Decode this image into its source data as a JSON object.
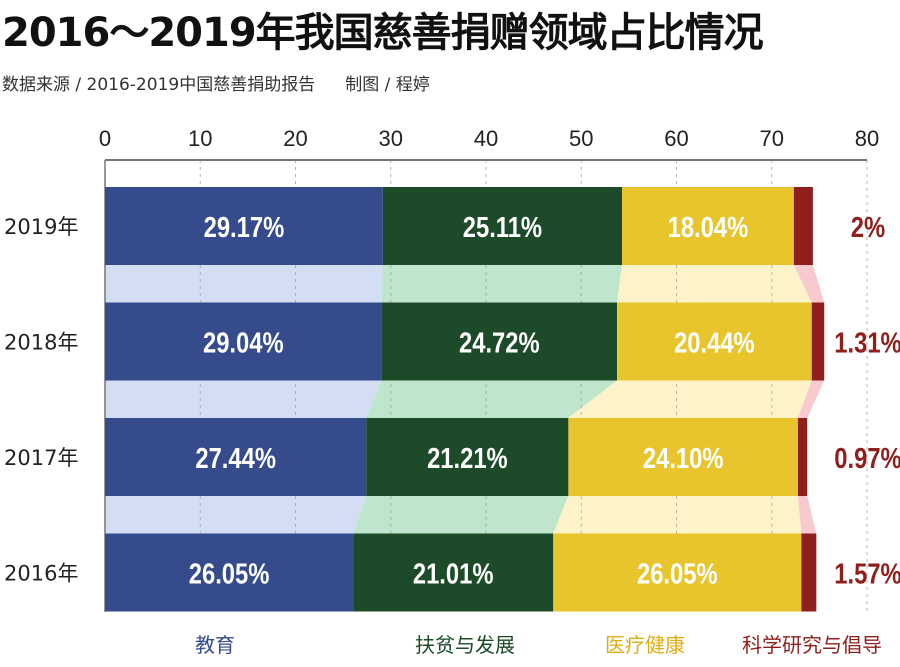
{
  "title": "2016～2019年我国慈善捐赠领域占比情况",
  "source": "数据来源 / 2016-2019中国慈善捐助报告",
  "credit": "制图 / 程婷",
  "chart_data": {
    "type": "bar",
    "orientation": "horizontal",
    "stacked": true,
    "categories": [
      "2019年",
      "2018年",
      "2017年",
      "2016年"
    ],
    "xlim": [
      0,
      80
    ],
    "xticks": [
      "0",
      "10",
      "20",
      "30",
      "40",
      "50",
      "60",
      "70",
      "80"
    ],
    "grid": true,
    "legend_position": "bottom",
    "series": [
      {
        "name": "教育",
        "values": [
          29.17,
          29.04,
          27.44,
          26.05
        ],
        "labels": [
          "29.17%",
          "29.04%",
          "27.44%",
          "26.05%"
        ],
        "color": "#364b8c",
        "light": "#d3def5"
      },
      {
        "name": "扶贫与发展",
        "values": [
          25.11,
          24.72,
          21.21,
          21.01
        ],
        "labels": [
          "25.11%",
          "24.72%",
          "21.21%",
          "21.01%"
        ],
        "color": "#1d4a28",
        "light": "#bfe6cd"
      },
      {
        "name": "医疗健康",
        "values": [
          18.04,
          20.44,
          24.1,
          26.05
        ],
        "labels": [
          "18.04%",
          "20.44%",
          "24.10%",
          "26.05%"
        ],
        "color": "#e9c52d",
        "light": "#fdf3c8"
      },
      {
        "name": "科学研究与倡导",
        "values": [
          2,
          1.31,
          0.97,
          1.57
        ],
        "labels": [
          "2%",
          "1.31%",
          "0.97%",
          "1.57%"
        ],
        "color": "#8e1f1d",
        "light": "#f8c9ce"
      }
    ]
  }
}
